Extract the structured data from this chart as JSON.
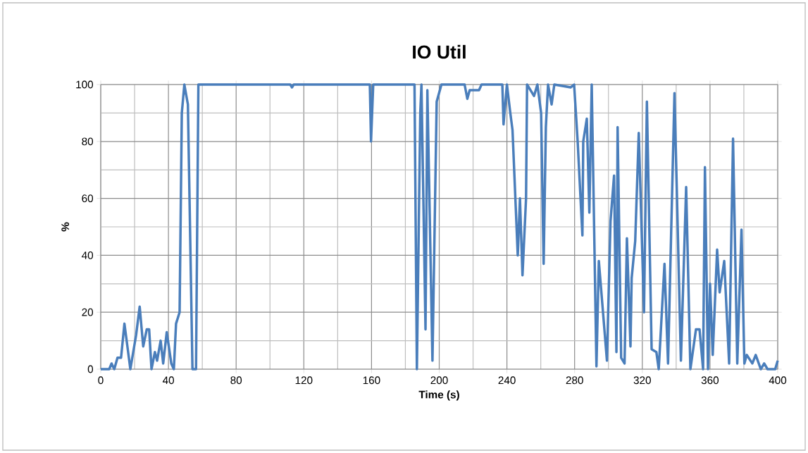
{
  "chart_data": {
    "type": "line",
    "title": "IO Util",
    "xlabel": "Time (s)",
    "ylabel": "%",
    "xlim": [
      0,
      400
    ],
    "ylim": [
      0,
      100
    ],
    "xticks": [
      0,
      40,
      80,
      120,
      160,
      200,
      240,
      280,
      320,
      360,
      400
    ],
    "yticks": [
      0,
      20,
      40,
      60,
      80,
      100
    ],
    "grid": true,
    "marker": "none",
    "line_style": "solid",
    "series": [
      {
        "color": "#4a7ebb",
        "x": [
          0,
          5,
          6.4,
          8,
          9.9,
          12,
          14,
          17.5,
          20.9,
          23,
          25.1,
          27.2,
          28.6,
          30,
          32,
          33.3,
          35.4,
          36.9,
          39,
          41.7,
          43.2,
          44.5,
          46.6,
          47.9,
          49.4,
          51.5,
          54.2,
          56.3,
          57.7,
          112,
          113,
          114,
          159,
          159.7,
          161,
          185.4,
          186.8,
          188.8,
          189.5,
          191.9,
          193,
          196,
          198.5,
          201.3,
          215,
          216.6,
          218,
          223.5,
          225,
          237.3,
          238,
          240,
          242,
          243.3,
          246.4,
          247.7,
          249.2,
          251.3,
          251.9,
          256,
          258,
          260.2,
          261.7,
          263,
          264.3,
          266.4,
          268,
          277.6,
          279.7,
          281.8,
          284.6,
          285.1,
          287.2,
          288.7,
          290.1,
          292.9,
          294.3,
          299.1,
          301.2,
          303.3,
          304.7,
          305.4,
          307.5,
          309.5,
          310.9,
          313,
          313.7,
          315.8,
          317.9,
          321,
          322.7,
          325.5,
          328.3,
          329.7,
          333.1,
          335.2,
          339,
          342.8,
          345.9,
          348.4,
          351.7,
          353.8,
          355.9,
          357,
          358.8,
          360,
          361.6,
          364.2,
          365.7,
          368.4,
          371.3,
          373.6,
          376.1,
          378.6,
          380.3,
          381.7,
          385,
          387,
          390,
          392,
          394,
          398.5,
          400
        ],
        "values": [
          0,
          0,
          2,
          0,
          4,
          4,
          16,
          0,
          12,
          22,
          8,
          14,
          14,
          0,
          6,
          3,
          10,
          2,
          13,
          2,
          0,
          16,
          20,
          90,
          100,
          93,
          0,
          0,
          100,
          100,
          99,
          100,
          100,
          80,
          100,
          100,
          0,
          90,
          100,
          14,
          98,
          3,
          94,
          100,
          100,
          95,
          98,
          98,
          100,
          100,
          86,
          100,
          90,
          84,
          40,
          60,
          33,
          60,
          100,
          96,
          100,
          90,
          37,
          85,
          100,
          93,
          100,
          99,
          100,
          80,
          47,
          80,
          88,
          55,
          100,
          1,
          38,
          3,
          52,
          68,
          6,
          85,
          4,
          2,
          46,
          8,
          32,
          45,
          83,
          20,
          94,
          7,
          6,
          0,
          37,
          2,
          97,
          3,
          64,
          0,
          14,
          14,
          0,
          71,
          0,
          30,
          5,
          42,
          27,
          38,
          2,
          81,
          2,
          49,
          2,
          5,
          2,
          5,
          0,
          2,
          0,
          0,
          3
        ]
      }
    ]
  }
}
